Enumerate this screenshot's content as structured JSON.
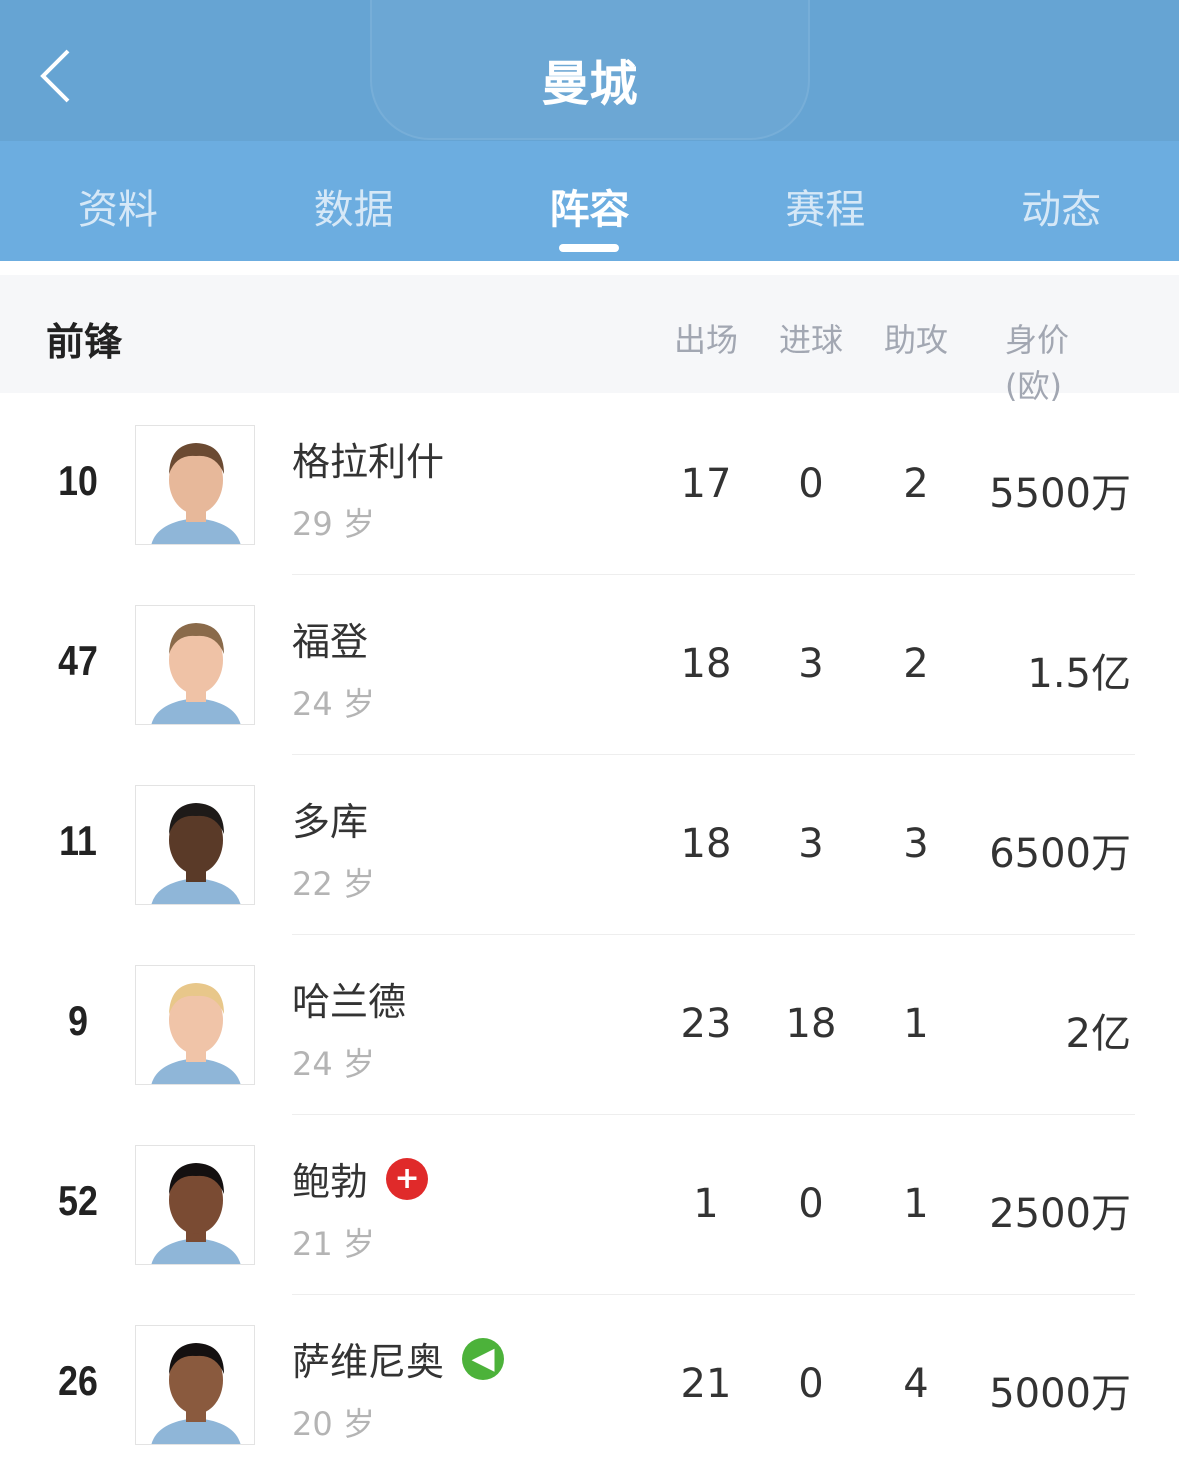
{
  "header": {
    "title": "曼城",
    "back_icon": "chevron-left-icon"
  },
  "tabs": [
    {
      "label": "资料"
    },
    {
      "label": "数据"
    },
    {
      "label": "阵容",
      "active": true
    },
    {
      "label": "赛程"
    },
    {
      "label": "动态"
    }
  ],
  "section": {
    "title": "前锋",
    "columns": [
      "出场",
      "进球",
      "助攻",
      "身价 (欧)"
    ]
  },
  "players": [
    {
      "number": "10",
      "name": "格拉利什",
      "age": "29 岁",
      "apps": "17",
      "goals": "0",
      "assists": "2",
      "value": "5500万"
    },
    {
      "number": "47",
      "name": "福登",
      "age": "24 岁",
      "apps": "18",
      "goals": "3",
      "assists": "2",
      "value": "1.5亿"
    },
    {
      "number": "11",
      "name": "多库",
      "age": "22 岁",
      "apps": "18",
      "goals": "3",
      "assists": "3",
      "value": "6500万"
    },
    {
      "number": "9",
      "name": "哈兰德",
      "age": "24 岁",
      "apps": "23",
      "goals": "18",
      "assists": "1",
      "value": "2亿"
    },
    {
      "number": "52",
      "name": "鲍勃",
      "age": "21 岁",
      "apps": "1",
      "goals": "0",
      "assists": "1",
      "value": "2500万",
      "badge": "injury-icon",
      "badge_color": "#e02a2a"
    },
    {
      "number": "26",
      "name": "萨维尼奥",
      "age": "20 岁",
      "apps": "21",
      "goals": "0",
      "assists": "4",
      "value": "5000万",
      "badge": "transfer-in-icon",
      "badge_color": "#4cb23a"
    }
  ],
  "colors": {
    "header": "#66a4d3",
    "tabbar": "#6cade0",
    "skin": [
      "#e7b89a",
      "#efc2a6",
      "#5a3a28",
      "#f0c4a8",
      "#7a4b33",
      "#8a5a3e"
    ],
    "hair": [
      "#6b4a32",
      "#8a6a4a",
      "#1e1a18",
      "#e8c78a",
      "#141010",
      "#141010"
    ]
  }
}
